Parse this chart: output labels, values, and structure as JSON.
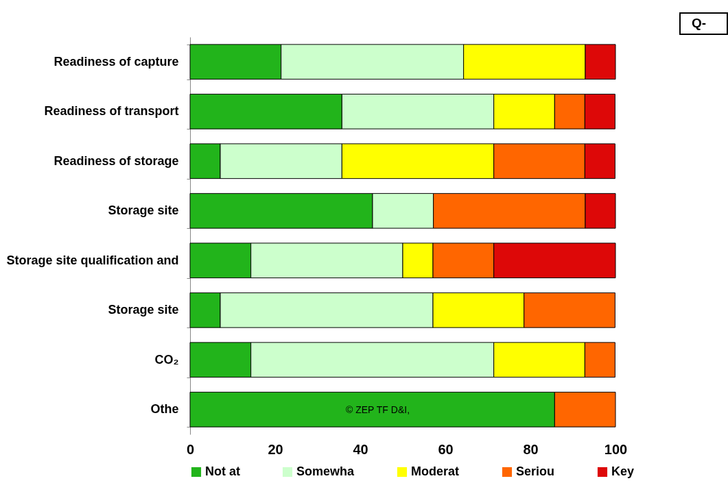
{
  "chart_data": {
    "type": "bar",
    "orientation": "horizontal",
    "stacked": true,
    "categories": [
      "Readiness of capture",
      "Readiness of transport",
      "Readiness of storage",
      "Storage site",
      "Storage site qualification and",
      "Storage site",
      "CO₂",
      "Othe"
    ],
    "series": [
      {
        "name": "Not at",
        "color": "#22b41b",
        "values": [
          21.4,
          35.7,
          7.1,
          42.9,
          14.3,
          7.1,
          14.3,
          85.7
        ]
      },
      {
        "name": "Somewha",
        "color": "#ccffcc",
        "values": [
          42.9,
          35.7,
          28.6,
          14.3,
          35.7,
          50.0,
          57.1,
          0
        ]
      },
      {
        "name": "Moderat",
        "color": "#ffff00",
        "values": [
          28.6,
          14.3,
          35.7,
          0,
          7.1,
          21.4,
          21.4,
          0
        ]
      },
      {
        "name": "Seriou",
        "color": "#ff6600",
        "values": [
          0,
          7.1,
          21.4,
          35.7,
          14.3,
          21.4,
          7.1,
          14.3
        ]
      },
      {
        "name": "Key",
        "color": "#dd0808",
        "values": [
          7.1,
          7.1,
          7.1,
          7.1,
          28.6,
          0,
          0,
          0
        ]
      }
    ],
    "xlim": [
      0,
      100
    ],
    "xticks": [
      0,
      20,
      40,
      60,
      80,
      100
    ],
    "grid": false,
    "legend": "bottom",
    "annotations": [
      "Q-",
      "© ZEP TF D&I,"
    ]
  }
}
